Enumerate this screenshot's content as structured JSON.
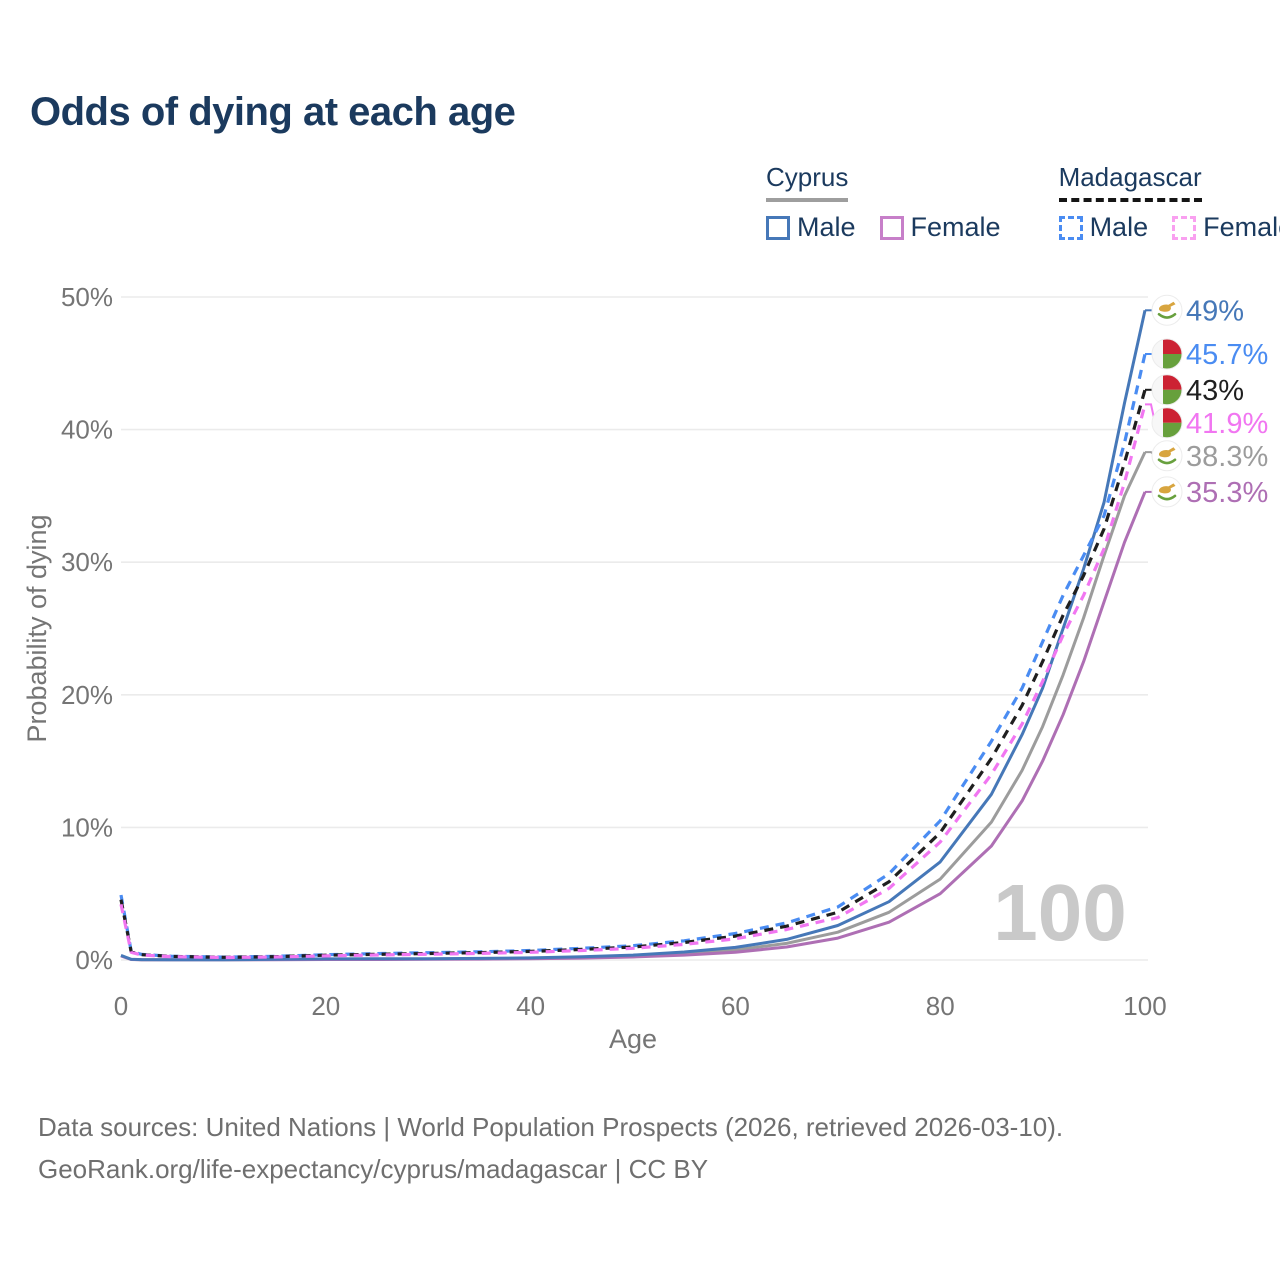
{
  "title": "Odds of dying at each age",
  "legend": {
    "groups": [
      {
        "id": "cyprus",
        "country": "Cyprus",
        "line_style": "solid",
        "underline_color": "#9e9e9e",
        "items": [
          {
            "id": "cyprus-male",
            "label": "Male",
            "color": "#4678b8"
          },
          {
            "id": "cyprus-female",
            "label": "Female",
            "color": "#c77fc9"
          }
        ]
      },
      {
        "id": "madagascar",
        "country": "Madagascar",
        "line_style": "dashed",
        "underline_color": "#151515",
        "items": [
          {
            "id": "madagascar-male",
            "label": "Male",
            "color": "#4a8cf2"
          },
          {
            "id": "madagascar-female",
            "label": "Female",
            "color": "#f9a0f0"
          }
        ]
      }
    ]
  },
  "chart_data": {
    "type": "line",
    "title": "Odds of dying at each age",
    "xlabel": "Age",
    "ylabel": "Probability of dying",
    "xlim": [
      0,
      100
    ],
    "ylim": [
      0,
      50
    ],
    "x_ticks": [
      0,
      20,
      40,
      60,
      80,
      100
    ],
    "y_ticks": [
      0,
      10,
      20,
      30,
      40,
      50
    ],
    "y_tick_suffix": "%",
    "grid": "horizontal-only",
    "legend_position": "top-right",
    "watermark": "100",
    "ages": [
      0,
      1,
      2,
      5,
      10,
      15,
      20,
      25,
      30,
      35,
      40,
      45,
      50,
      55,
      60,
      65,
      70,
      75,
      80,
      85,
      88,
      90,
      92,
      94,
      96,
      98,
      100
    ],
    "series": [
      {
        "id": "cyprus-male",
        "name": "Cyprus Male",
        "color": "#4678b8",
        "dash": "solid",
        "flag": "cyprus",
        "end_label": "49%",
        "values": [
          0.35,
          0.05,
          0.03,
          0.02,
          0.02,
          0.05,
          0.08,
          0.09,
          0.1,
          0.12,
          0.16,
          0.24,
          0.37,
          0.6,
          0.95,
          1.55,
          2.6,
          4.4,
          7.4,
          12.5,
          17.0,
          20.5,
          25.0,
          29.5,
          34.5,
          42.0,
          49.0
        ]
      },
      {
        "id": "madagascar-male",
        "name": "Madagascar Male",
        "color": "#4a8cf2",
        "dash": "dashed",
        "flag": "madagascar",
        "end_label": "45.7%",
        "values": [
          4.9,
          0.65,
          0.42,
          0.28,
          0.22,
          0.28,
          0.4,
          0.48,
          0.55,
          0.62,
          0.72,
          0.88,
          1.08,
          1.45,
          2.0,
          2.8,
          4.0,
          6.5,
          10.5,
          16.5,
          20.5,
          24.0,
          27.5,
          30.5,
          33.5,
          39.0,
          45.7
        ]
      },
      {
        "id": "madagascar-both",
        "name": "Madagascar Both sexes",
        "color": "#1f1f1f",
        "dash": "dashed",
        "flag": "madagascar",
        "end_label": "43%",
        "values": [
          4.55,
          0.62,
          0.4,
          0.27,
          0.2,
          0.25,
          0.36,
          0.43,
          0.49,
          0.56,
          0.65,
          0.8,
          0.98,
          1.32,
          1.8,
          2.55,
          3.6,
          5.9,
          9.6,
          15.2,
          19.2,
          22.5,
          26.0,
          29.0,
          32.5,
          37.5,
          43.0
        ]
      },
      {
        "id": "madagascar-female",
        "name": "Madagascar Female",
        "color": "#f176f1",
        "dash": "dashed",
        "flag": "madagascar",
        "end_label": "41.9%",
        "values": [
          4.2,
          0.58,
          0.38,
          0.25,
          0.19,
          0.23,
          0.31,
          0.38,
          0.44,
          0.5,
          0.58,
          0.72,
          0.88,
          1.18,
          1.6,
          2.3,
          3.2,
          5.4,
          8.9,
          14.0,
          17.8,
          21.0,
          24.5,
          27.5,
          31.0,
          36.0,
          41.9
        ]
      },
      {
        "id": "cyprus-both",
        "name": "Cyprus Both sexes",
        "color": "#9c9c9c",
        "dash": "solid",
        "flag": "cyprus",
        "end_label": "38.3%",
        "values": [
          0.33,
          0.045,
          0.025,
          0.018,
          0.018,
          0.04,
          0.06,
          0.065,
          0.075,
          0.09,
          0.12,
          0.19,
          0.3,
          0.48,
          0.76,
          1.25,
          2.1,
          3.6,
          6.1,
          10.4,
          14.3,
          17.6,
          21.5,
          25.8,
          30.5,
          35.0,
          38.3
        ]
      },
      {
        "id": "cyprus-female",
        "name": "Cyprus Female",
        "color": "#ae6fb4",
        "dash": "solid",
        "flag": "cyprus",
        "end_label": "35.3%",
        "values": [
          0.3,
          0.04,
          0.02,
          0.015,
          0.015,
          0.025,
          0.035,
          0.04,
          0.05,
          0.065,
          0.09,
          0.14,
          0.23,
          0.37,
          0.58,
          0.98,
          1.65,
          2.85,
          5.0,
          8.6,
          12.0,
          15.0,
          18.5,
          22.5,
          27.0,
          31.5,
          35.3
        ]
      }
    ]
  },
  "flag_colors": {
    "cyprus_island": "#d8a53f",
    "cyprus_wreath": "#68a03e",
    "madagascar_red": "#cc2233",
    "madagascar_green": "#67a03c"
  },
  "colors": {
    "title": "#1b3a5e",
    "axis_text": "#757575",
    "gridline": "#ebebeb",
    "watermark": "#c9c9c9",
    "footer": "#6f6f6f"
  },
  "footer": {
    "line1": "Data sources: United Nations | World Population Prospects (2026, retrieved 2026-03-10).",
    "line2": "GeoRank.org/life-expectancy/cyprus/madagascar | CC BY"
  }
}
